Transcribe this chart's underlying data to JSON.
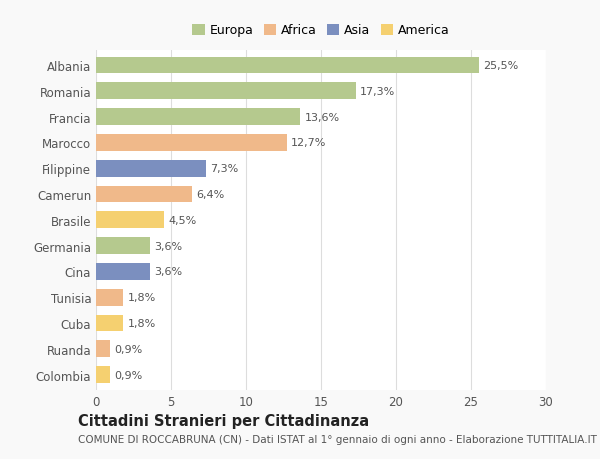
{
  "categories": [
    "Albania",
    "Romania",
    "Francia",
    "Marocco",
    "Filippine",
    "Camerun",
    "Brasile",
    "Germania",
    "Cina",
    "Tunisia",
    "Cuba",
    "Ruanda",
    "Colombia"
  ],
  "values": [
    25.5,
    17.3,
    13.6,
    12.7,
    7.3,
    6.4,
    4.5,
    3.6,
    3.6,
    1.8,
    1.8,
    0.9,
    0.9
  ],
  "labels": [
    "25,5%",
    "17,3%",
    "13,6%",
    "12,7%",
    "7,3%",
    "6,4%",
    "4,5%",
    "3,6%",
    "3,6%",
    "1,8%",
    "1,8%",
    "0,9%",
    "0,9%"
  ],
  "colors": [
    "#b5c98e",
    "#b5c98e",
    "#b5c98e",
    "#f0b98a",
    "#7b8fbf",
    "#f0b98a",
    "#f5d070",
    "#b5c98e",
    "#7b8fbf",
    "#f0b98a",
    "#f5d070",
    "#f0b98a",
    "#f5d070"
  ],
  "legend_labels": [
    "Europa",
    "Africa",
    "Asia",
    "America"
  ],
  "legend_colors": [
    "#b5c98e",
    "#f0b98a",
    "#7b8fbf",
    "#f5d070"
  ],
  "title": "Cittadini Stranieri per Cittadinanza",
  "subtitle": "COMUNE DI ROCCABRUNA (CN) - Dati ISTAT al 1° gennaio di ogni anno - Elaborazione TUTTITALIA.IT",
  "xlim": [
    0,
    30
  ],
  "xticks": [
    0,
    5,
    10,
    15,
    20,
    25,
    30
  ],
  "background_color": "#f9f9f9",
  "bar_background": "#ffffff",
  "grid_color": "#dddddd",
  "text_color": "#555555",
  "title_fontsize": 10.5,
  "subtitle_fontsize": 7.5,
  "label_fontsize": 8,
  "tick_fontsize": 8.5,
  "legend_fontsize": 9
}
